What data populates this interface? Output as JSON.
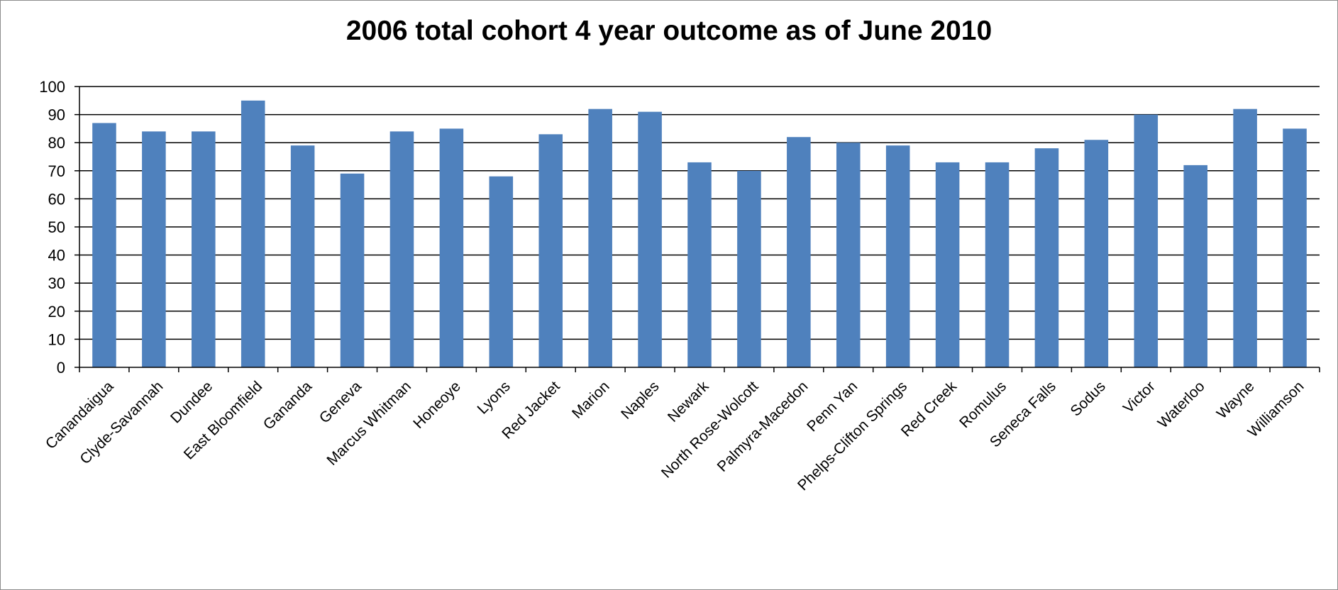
{
  "chart_data": {
    "type": "bar",
    "title": "2006 total cohort 4 year outcome as of June 2010",
    "xlabel": "",
    "ylabel": "",
    "ylim": [
      0,
      100
    ],
    "yticks": [
      "0",
      "10",
      "20",
      "30",
      "40",
      "50",
      "60",
      "70",
      "80",
      "90",
      "100"
    ],
    "grid": true,
    "legend": "none",
    "bar_color": "#4F81BD",
    "categories": [
      "Canandaigua",
      "Clyde-Savannah",
      "Dundee",
      "East Bloomfield",
      "Gananda",
      "Geneva",
      "Marcus Whitman",
      "Honeoye",
      "Lyons",
      "Red Jacket",
      "Marion",
      "Naples",
      "Newark",
      "North Rose-Wolcott",
      "Palmyra-Macedon",
      "Penn Yan",
      "Phelps-Clifton Springs",
      "Red Creek",
      "Romulus",
      "Seneca Falls",
      "Sodus",
      "Victor",
      "Waterloo",
      "Wayne",
      "Williamson"
    ],
    "values": [
      87,
      84,
      84,
      95,
      79,
      69,
      84,
      85,
      68,
      83,
      92,
      91,
      73,
      70,
      82,
      80,
      79,
      73,
      73,
      78,
      81,
      90,
      72,
      92,
      85
    ]
  }
}
